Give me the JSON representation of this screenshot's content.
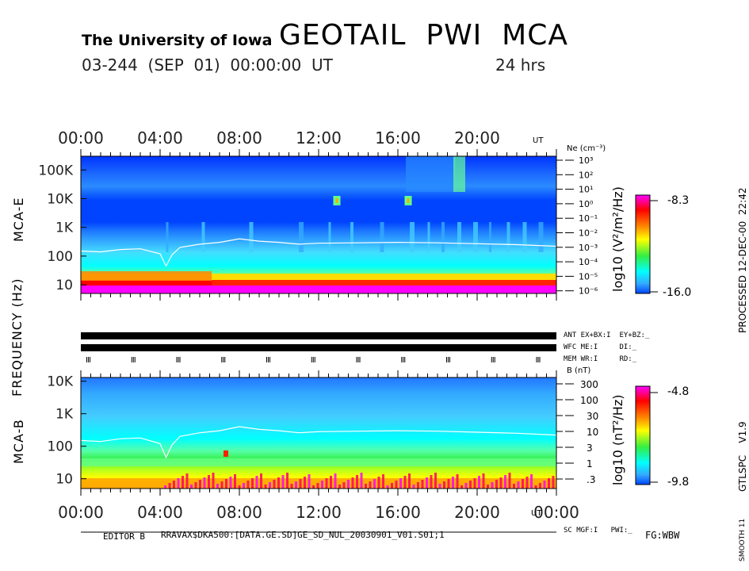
{
  "header": {
    "institution": "The University of Iowa",
    "title": "GEOTAIL  PWI  MCA",
    "date_line": "03-244  (SEP  01)  00:00:00  UT",
    "duration": "24 hrs"
  },
  "side": {
    "processed": "PROCESSED 12-DEC-00  22:42",
    "version": "GTLSPC    V1.9",
    "smooth": "SMOOTH 11"
  },
  "axis_labels": {
    "frequency": "FREQUENCY (Hz)",
    "mca_e": "MCA-E",
    "mca_b": "MCA-B",
    "ut_top": "UT",
    "ut_bottom": "UT",
    "ne_unit": "Ne (cm⁻³)",
    "b_unit": "B (nT)"
  },
  "status": {
    "row1": "ANT EX+BX:I  EY+BZ:_",
    "row2": "WFC ME:I     DI:_",
    "row3": "MEM WR:I     RD:_",
    "row4": "SC MGF:I   PWI:_"
  },
  "footer": {
    "editor": "EDITOR B",
    "file": "RRAVAX$DKA500:[DATA.GE.SD]GE_SD_NUL_20030901_V01.S01;1",
    "flag": "FG:WBW"
  },
  "colorbars": {
    "e_unit": "log10 (V²/m²/Hz)",
    "e_max": "-8.3",
    "e_min": "-16.0",
    "b_unit": "log10 (nT²/Hz)",
    "b_max": "-4.8",
    "b_min": "-9.8"
  },
  "colors": {
    "magenta": "#ff00ff",
    "red": "#ff0000",
    "orange": "#ff8800",
    "yellow": "#ffff00",
    "green": "#33ee44",
    "cyan": "#00ffff",
    "sky": "#33aaff",
    "blue": "#0044ff"
  },
  "chart_data": [
    {
      "type": "heatmap",
      "name": "MCA-E electric field spectrogram",
      "x_ticks": [
        "00:00",
        "04:00",
        "08:00",
        "12:00",
        "16:00",
        "20:00"
      ],
      "x_range_hours": [
        0,
        24
      ],
      "y_ticks": [
        "10",
        "100",
        "1K",
        "10K",
        "100K"
      ],
      "ylabel": "FREQUENCY (Hz)",
      "ylim_hz": [
        5,
        300000
      ],
      "y_scale": "log",
      "right_axis": {
        "label": "Ne (cm⁻³)",
        "ticks": [
          "10³",
          "10²",
          "10¹",
          "10⁰",
          "10⁻¹",
          "10⁻²",
          "10⁻³",
          "10⁻⁴",
          "10⁻⁵",
          "10⁻⁶"
        ]
      },
      "color_range_log10": [
        -16.0,
        -8.3
      ],
      "trace": {
        "name": "white plasma line",
        "hours": [
          0,
          1,
          2,
          3,
          4,
          4.3,
          4.6,
          5,
          6,
          7,
          8,
          9,
          10,
          11,
          12,
          14,
          16,
          18,
          20,
          22,
          24
        ],
        "freq_hz": [
          150,
          140,
          170,
          180,
          120,
          45,
          110,
          200,
          260,
          300,
          400,
          330,
          300,
          260,
          280,
          290,
          300,
          290,
          270,
          250,
          220
        ]
      }
    },
    {
      "type": "heatmap",
      "name": "MCA-B magnetic field spectrogram",
      "x_ticks": [
        "00:00",
        "04:00",
        "08:00",
        "12:00",
        "16:00",
        "20:00",
        "00:00"
      ],
      "x_range_hours": [
        0,
        24
      ],
      "y_ticks": [
        "10",
        "100",
        "1K",
        "10K"
      ],
      "ylabel": "FREQUENCY (Hz)",
      "ylim_hz": [
        5,
        13000
      ],
      "y_scale": "log",
      "right_axis": {
        "label": "B (nT)",
        "ticks": [
          "300",
          "100",
          "30",
          "10",
          "3",
          "1",
          ".3"
        ]
      },
      "color_range_log10": [
        -9.8,
        -4.8
      ],
      "trace": {
        "name": "white field line",
        "hours": [
          0,
          1,
          2,
          3,
          4,
          4.3,
          4.6,
          5,
          6,
          7,
          8,
          9,
          10,
          11,
          12,
          14,
          16,
          18,
          20,
          22,
          24
        ],
        "freq_hz": [
          150,
          140,
          170,
          180,
          120,
          45,
          110,
          200,
          260,
          300,
          400,
          330,
          300,
          260,
          280,
          290,
          300,
          290,
          270,
          250,
          220
        ]
      }
    }
  ]
}
